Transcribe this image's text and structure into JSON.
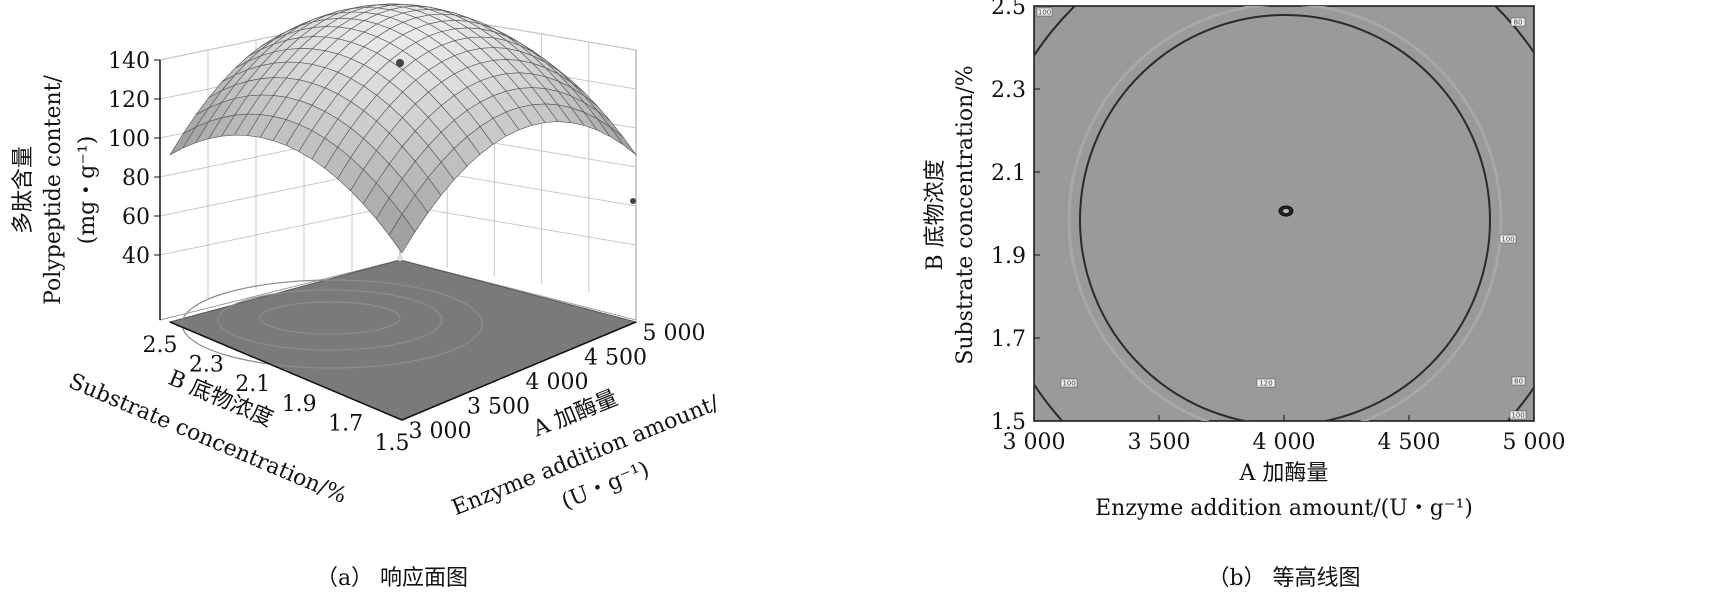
{
  "charts": {
    "surface": {
      "chart_data": {
        "type": "surface3d",
        "z_axis": {
          "label_cn": "多肽含量",
          "label_en": "Polypeptide content/",
          "unit": "(mg・g⁻¹)",
          "ticks": [
            "40",
            "60",
            "80",
            "100",
            "120",
            "140"
          ]
        },
        "b_axis": {
          "label_cn": "B 底物浓度",
          "label_en": "Substrate concentration/%",
          "ticks": [
            "2.5",
            "2.3",
            "2.1",
            "1.9",
            "1.7",
            "1.5"
          ]
        },
        "a_axis": {
          "label_cn": "A 加酶量",
          "label_en": "Enzyme addition amount/",
          "unit": "(U・g⁻¹)",
          "ticks": [
            "3 000",
            "3 500",
            "4 000",
            "4 500",
            "5 000"
          ]
        },
        "peak": {
          "a": 4000,
          "b": 2.0,
          "z": 125
        }
      },
      "caption": "（a） 响应面图"
    },
    "contour": {
      "chart_data": {
        "type": "contour",
        "xlim": [
          3000,
          5000
        ],
        "ylim": [
          1.5,
          2.5
        ],
        "x_ticks": [
          "3 000",
          "3 500",
          "4 000",
          "4 500",
          "5 000"
        ],
        "y_ticks": [
          "2.5",
          "2.3",
          "2.1",
          "1.9",
          "1.7",
          "1.5"
        ],
        "x_label_cn": "A 加酶量",
        "x_label_en": "Enzyme addition amount/(U・g⁻¹)",
        "y_label_cn": "B 底物浓度",
        "y_label_en": "Substrate concentration/%",
        "center": {
          "x": 4000,
          "y": 2.0
        },
        "contour_levels": [
          "100",
          "120",
          "100",
          "80",
          "100",
          "100",
          "80"
        ]
      },
      "caption": "（b） 等高线图"
    }
  },
  "colors": {
    "plot_bg": "#9a9a9a",
    "floor": "#7a7a7a",
    "surface_light": "#e9e9e9",
    "surface_dark": "#8e8e8e",
    "grid": "#c8c8c8",
    "contour_line": "#2a2a2a"
  }
}
